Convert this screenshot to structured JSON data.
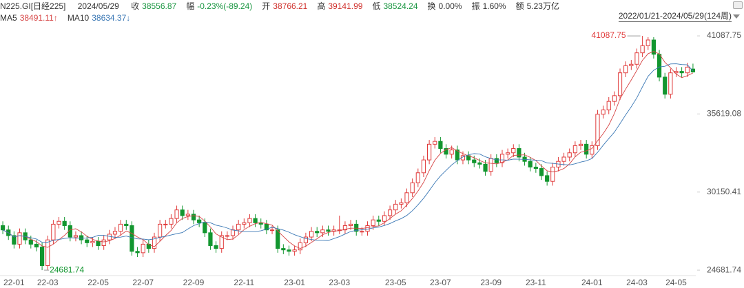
{
  "header": {
    "code": "N225.GI[日经225]",
    "date": "2024/05/29",
    "items": [
      {
        "label": "收",
        "value": "38556.87",
        "color": "#1a9641"
      },
      {
        "label": "幅",
        "value": "-0.23%(-89.24)",
        "color": "#1a9641"
      },
      {
        "label": "开",
        "value": "38766.21",
        "color": "#d0312d"
      },
      {
        "label": "高",
        "value": "39141.99",
        "color": "#d0312d"
      },
      {
        "label": "低",
        "value": "38524.24",
        "color": "#1a9641"
      },
      {
        "label": "换",
        "value": "0.00%",
        "color": "#333333"
      },
      {
        "label": "振",
        "value": "1.60%",
        "color": "#333333"
      },
      {
        "label": "额",
        "value": "5.23万亿",
        "color": "#333333"
      }
    ],
    "range": "2022/01/21-2024/05/29(124周)"
  },
  "chart_data": {
    "type": "candlestick",
    "up_color": "#e03a3a",
    "down_color": "#12962f",
    "grid": false,
    "ylim": [
      24300,
      41670
    ],
    "yticks": [
      24681.74,
      30150.41,
      35619.08,
      41087.75
    ],
    "categories": [
      null,
      null,
      "22-01",
      null,
      null,
      null,
      null,
      null,
      "22-03",
      null,
      null,
      null,
      null,
      null,
      null,
      null,
      null,
      "22-05",
      null,
      null,
      null,
      null,
      null,
      null,
      null,
      "22-07",
      null,
      null,
      null,
      null,
      null,
      null,
      null,
      null,
      "22-09",
      null,
      null,
      null,
      null,
      null,
      null,
      null,
      null,
      "22-11",
      null,
      null,
      null,
      null,
      null,
      null,
      null,
      null,
      "23-01",
      null,
      null,
      null,
      null,
      null,
      null,
      null,
      "23-03",
      null,
      null,
      null,
      null,
      null,
      null,
      null,
      null,
      null,
      "23-05",
      null,
      null,
      null,
      null,
      null,
      null,
      null,
      "23-07",
      null,
      null,
      null,
      null,
      null,
      null,
      null,
      null,
      "23-09",
      null,
      null,
      null,
      null,
      null,
      null,
      null,
      "23-11",
      null,
      null,
      null,
      null,
      null,
      null,
      null,
      null,
      null,
      "24-01",
      null,
      null,
      null,
      null,
      null,
      null,
      null,
      "24-03",
      null,
      null,
      null,
      null,
      null,
      null,
      "24-05",
      null,
      null,
      null
    ],
    "open": [
      27800,
      27500,
      27100,
      26500,
      27300,
      26800,
      26500,
      26300,
      25000,
      26800,
      27900,
      28100,
      27800,
      27000,
      27100,
      26800,
      26600,
      26700,
      26400,
      26800,
      27200,
      27400,
      27900,
      27800,
      26000,
      25900,
      26500,
      26200,
      27000,
      27900,
      27900,
      28300,
      28900,
      28500,
      28600,
      28200,
      28000,
      27300,
      26400,
      26200,
      27100,
      27100,
      27500,
      27900,
      28000,
      28300,
      28000,
      27900,
      27500,
      27500,
      26200,
      26100,
      26000,
      26100,
      26600,
      27000,
      27400,
      27300,
      27500,
      27400,
      27500,
      27500,
      27800,
      27900,
      27400,
      27400,
      27800,
      28200,
      28100,
      28500,
      28900,
      29300,
      29400,
      30100,
      30800,
      31500,
      32400,
      33500,
      33700,
      33200,
      32800,
      33100,
      32400,
      32700,
      32400,
      32200,
      32100,
      31600,
      32500,
      32200,
      32800,
      32900,
      33200,
      32600,
      32300,
      31900,
      31800,
      31300,
      30900,
      31900,
      32300,
      32600,
      32900,
      33400,
      33500,
      32800,
      33400,
      35600,
      35900,
      36500,
      36900,
      38500,
      39000,
      39100,
      39900,
      40400,
      40800,
      39800,
      38200,
      37000,
      38500,
      38600,
      38500,
      38766.21
    ],
    "high": [
      28100,
      27800,
      27400,
      27600,
      27600,
      27100,
      26800,
      26600,
      27100,
      28200,
      28400,
      28400,
      28100,
      27400,
      27400,
      27100,
      27000,
      27000,
      27100,
      27500,
      27700,
      28200,
      28200,
      28100,
      26300,
      26800,
      26800,
      27300,
      28200,
      28200,
      28600,
      29200,
      29200,
      28900,
      28900,
      28500,
      28300,
      27600,
      26700,
      27400,
      27400,
      27800,
      28200,
      28300,
      28600,
      28600,
      28300,
      28200,
      27800,
      27800,
      26500,
      26400,
      26400,
      26900,
      27300,
      27700,
      27700,
      27800,
      27800,
      27800,
      28500,
      28100,
      28200,
      28200,
      27700,
      28100,
      28500,
      28500,
      28800,
      29200,
      29600,
      29700,
      30400,
      31100,
      31800,
      32700,
      33800,
      34000,
      34000,
      33500,
      33400,
      33400,
      33000,
      33000,
      32700,
      32500,
      32400,
      32800,
      32800,
      33100,
      33200,
      33500,
      33500,
      32900,
      32600,
      32200,
      32100,
      31600,
      32200,
      32600,
      32900,
      33200,
      33700,
      33800,
      33800,
      33700,
      35900,
      36200,
      36800,
      37200,
      38800,
      39300,
      39400,
      40200,
      41087.75,
      41000,
      41000,
      40100,
      38500,
      38800,
      38900,
      38900,
      39200,
      39141.99
    ],
    "low": [
      27200,
      26800,
      26200,
      26200,
      26500,
      26200,
      26000,
      24681.74,
      24700,
      26500,
      27600,
      27500,
      26700,
      26700,
      26500,
      26300,
      26300,
      26100,
      26100,
      26500,
      26900,
      27100,
      27500,
      25700,
      25600,
      25600,
      25900,
      25900,
      26700,
      27600,
      27600,
      28000,
      28200,
      28200,
      27900,
      27700,
      27000,
      26100,
      25900,
      25900,
      26800,
      26800,
      27200,
      27600,
      27700,
      27700,
      27600,
      27200,
      27200,
      25900,
      25800,
      25700,
      25700,
      25800,
      26300,
      26700,
      27000,
      27000,
      27100,
      27100,
      27200,
      27200,
      27500,
      27100,
      27100,
      27100,
      27500,
      27800,
      27800,
      28200,
      28600,
      29000,
      29100,
      29800,
      30500,
      31200,
      32100,
      33200,
      32900,
      32500,
      32500,
      32100,
      32100,
      32100,
      31900,
      31800,
      31300,
      31300,
      31900,
      31900,
      32500,
      32600,
      32300,
      32000,
      31600,
      31500,
      31000,
      30600,
      30600,
      31600,
      32000,
      32300,
      32600,
      33100,
      32500,
      32500,
      33100,
      35300,
      35600,
      36200,
      36600,
      38200,
      38700,
      38800,
      39600,
      40100,
      39500,
      37900,
      36700,
      36700,
      38200,
      38200,
      38200,
      38524.24
    ],
    "close": [
      27500,
      27100,
      26500,
      27300,
      26800,
      26500,
      26300,
      25000,
      26800,
      27900,
      28100,
      27800,
      27000,
      27100,
      26800,
      26600,
      26700,
      26400,
      26800,
      27200,
      27400,
      27900,
      27800,
      26000,
      25900,
      26500,
      26200,
      27000,
      27900,
      27900,
      28300,
      28900,
      28500,
      28600,
      28200,
      28000,
      27300,
      26400,
      26200,
      27100,
      27100,
      27500,
      27900,
      28000,
      28300,
      28000,
      27900,
      27500,
      27500,
      26200,
      26100,
      26000,
      26100,
      26600,
      27000,
      27400,
      27300,
      27500,
      27400,
      27500,
      27500,
      27800,
      27900,
      27400,
      27400,
      27800,
      28200,
      28100,
      28500,
      28900,
      29300,
      29400,
      30100,
      30800,
      31500,
      32400,
      33500,
      33700,
      33200,
      32800,
      33100,
      32400,
      32700,
      32400,
      32200,
      32100,
      31600,
      32500,
      32200,
      32800,
      32900,
      33200,
      32600,
      32300,
      31900,
      31800,
      31300,
      30900,
      31900,
      32300,
      32600,
      32900,
      33400,
      33500,
      32800,
      33400,
      35600,
      35900,
      36500,
      36900,
      38500,
      39000,
      39100,
      39900,
      40400,
      40800,
      39800,
      38200,
      37000,
      38500,
      38600,
      38500,
      38900,
      38556.87
    ],
    "series": [
      {
        "name": "MA5",
        "legend_label": "38491.11↑",
        "color": "#d64545",
        "values": [
          27500,
          27300,
          27000,
          27100,
          27040,
          26840,
          26680,
          26380,
          26280,
          26500,
          26820,
          27120,
          27520,
          27580,
          27360,
          27060,
          26840,
          26720,
          26660,
          26740,
          26900,
          27140,
          27420,
          27260,
          27000,
          26820,
          26480,
          26320,
          26700,
          27100,
          27460,
          28000,
          28300,
          28440,
          28500,
          28440,
          28120,
          27700,
          27220,
          27000,
          26820,
          26860,
          27160,
          27520,
          27760,
          27940,
          28020,
          27940,
          27840,
          27420,
          27040,
          26660,
          26380,
          26200,
          26360,
          26620,
          26880,
          27160,
          27320,
          27420,
          27440,
          27540,
          27620,
          27620,
          27600,
          27660,
          27740,
          27780,
          28000,
          28300,
          28600,
          28840,
          29240,
          29700,
          30220,
          30840,
          31660,
          32380,
          32860,
          33120,
          33260,
          33040,
          32840,
          32680,
          32560,
          32360,
          32200,
          32160,
          32120,
          32240,
          32400,
          32720,
          32740,
          32760,
          32580,
          32360,
          31980,
          31640,
          31560,
          31640,
          31800,
          32120,
          32620,
          32940,
          33040,
          33200,
          33740,
          34240,
          34840,
          35660,
          36680,
          37360,
          38000,
          38680,
          39380,
          39840,
          40000,
          39820,
          39240,
          38860,
          38420,
          38160,
          38300,
          38491.11
        ]
      },
      {
        "name": "MA10",
        "legend_label": "38634.37↓",
        "color": "#3b78b5",
        "values": [
          27500,
          27300,
          27000,
          27100,
          27040,
          26950,
          26860,
          26630,
          26640,
          26770,
          26830,
          26900,
          26950,
          26930,
          26930,
          26940,
          26980,
          27120,
          27120,
          27050,
          26980,
          26990,
          27070,
          26960,
          26870,
          26860,
          26810,
          26870,
          26980,
          27050,
          27140,
          27240,
          27310,
          27570,
          27800,
          27950,
          28060,
          28000,
          27830,
          27750,
          27630,
          27490,
          27430,
          27370,
          27380,
          27380,
          27440,
          27550,
          27680,
          27590,
          27490,
          27340,
          27160,
          27020,
          26890,
          26830,
          26770,
          26770,
          26760,
          26890,
          27030,
          27210,
          27390,
          27470,
          27510,
          27550,
          27640,
          27700,
          27810,
          27950,
          28130,
          28290,
          28510,
          28850,
          29260,
          29720,
          30250,
          30810,
          31280,
          31670,
          32050,
          32350,
          32610,
          32770,
          32840,
          32810,
          32620,
          32500,
          32400,
          32400,
          32380,
          32460,
          32450,
          32440,
          32410,
          32380,
          32350,
          32190,
          32160,
          32110,
          32080,
          32050,
          32130,
          32250,
          32340,
          32500,
          32930,
          33430,
          33890,
          34350,
          34940,
          35550,
          36120,
          36760,
          37520,
          38260,
          38680,
          38910,
          38960,
          39120,
          39130,
          39080,
          39060,
          38634.37
        ]
      }
    ]
  }
}
